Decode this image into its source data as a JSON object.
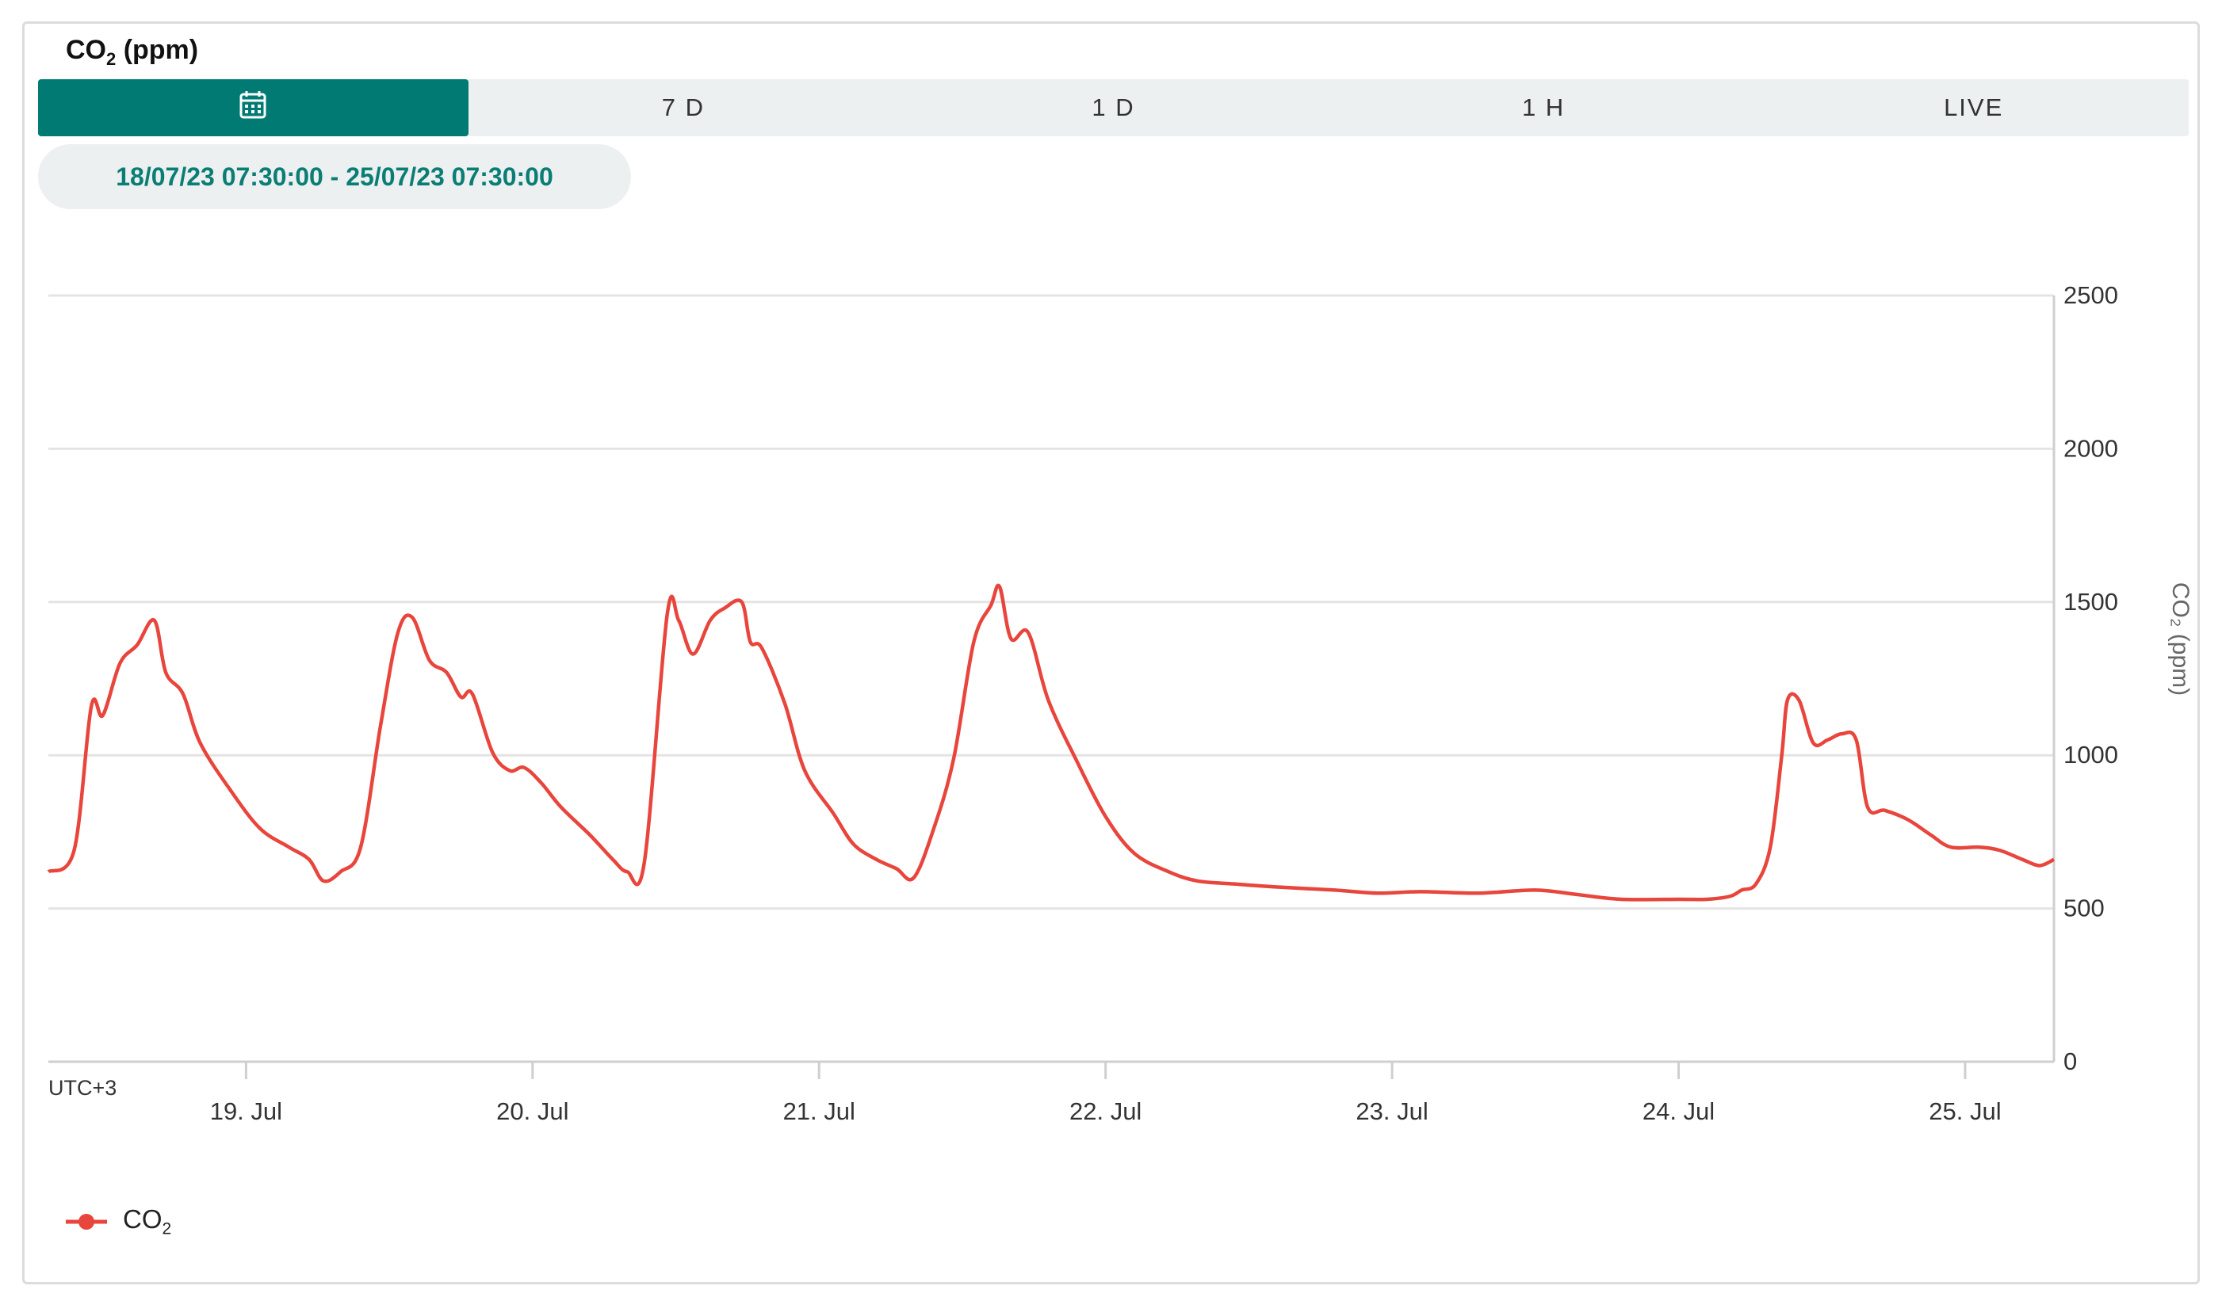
{
  "header": {
    "title_prefix": "CO",
    "title_sub": "2",
    "title_suffix": " (ppm)"
  },
  "tabs": [
    {
      "label": "",
      "icon": "calendar-icon",
      "active": true
    },
    {
      "label": "7 D",
      "active": false
    },
    {
      "label": "1 D",
      "active": false
    },
    {
      "label": "1 H",
      "active": false
    },
    {
      "label": "LIVE",
      "active": false
    }
  ],
  "range_label": "18/07/23 07:30:00 - 25/07/23 07:30:00",
  "timezone_label": "UTC+3",
  "legend": {
    "prefix": "CO",
    "sub": "2"
  },
  "colors": {
    "accent": "#007a72",
    "series": "#e8453c",
    "range_text": "#0a7d75"
  },
  "chart_data": {
    "type": "line",
    "ylabel": "CO₂ (ppm)",
    "ylim": [
      0,
      2500
    ],
    "yticks": [
      0,
      500,
      1000,
      1500,
      2000,
      2500
    ],
    "xticks": [
      {
        "label": "19. Jul",
        "day": 19
      },
      {
        "label": "20. Jul",
        "day": 20
      },
      {
        "label": "21. Jul",
        "day": 21
      },
      {
        "label": "22. Jul",
        "day": 22
      },
      {
        "label": "23. Jul",
        "day": 23
      },
      {
        "label": "24. Jul",
        "day": 24
      },
      {
        "label": "25. Jul",
        "day": 25
      }
    ],
    "xlim_days": [
      18.31,
      25.31
    ],
    "grid": true,
    "legend_position": "bottom-left",
    "series": [
      {
        "name": "CO₂",
        "points": [
          [
            18.31,
            620
          ],
          [
            18.4,
            690
          ],
          [
            18.46,
            1160
          ],
          [
            18.5,
            1130
          ],
          [
            18.56,
            1300
          ],
          [
            18.62,
            1360
          ],
          [
            18.68,
            1440
          ],
          [
            18.72,
            1270
          ],
          [
            18.78,
            1200
          ],
          [
            18.84,
            1040
          ],
          [
            18.95,
            880
          ],
          [
            19.05,
            760
          ],
          [
            19.15,
            700
          ],
          [
            19.22,
            660
          ],
          [
            19.27,
            590
          ],
          [
            19.33,
            620
          ],
          [
            19.4,
            700
          ],
          [
            19.47,
            1100
          ],
          [
            19.53,
            1400
          ],
          [
            19.58,
            1450
          ],
          [
            19.64,
            1310
          ],
          [
            19.7,
            1270
          ],
          [
            19.75,
            1190
          ],
          [
            19.79,
            1200
          ],
          [
            19.86,
            1010
          ],
          [
            19.92,
            950
          ],
          [
            19.97,
            960
          ],
          [
            20.03,
            910
          ],
          [
            20.1,
            830
          ],
          [
            20.2,
            740
          ],
          [
            20.28,
            660
          ],
          [
            20.33,
            620
          ],
          [
            20.39,
            650
          ],
          [
            20.47,
            1460
          ],
          [
            20.51,
            1440
          ],
          [
            20.56,
            1330
          ],
          [
            20.62,
            1440
          ],
          [
            20.67,
            1480
          ],
          [
            20.73,
            1500
          ],
          [
            20.76,
            1370
          ],
          [
            20.8,
            1350
          ],
          [
            20.88,
            1170
          ],
          [
            20.95,
            950
          ],
          [
            21.05,
            810
          ],
          [
            21.12,
            710
          ],
          [
            21.2,
            660
          ],
          [
            21.27,
            630
          ],
          [
            21.33,
            600
          ],
          [
            21.4,
            760
          ],
          [
            21.47,
            990
          ],
          [
            21.54,
            1370
          ],
          [
            21.6,
            1490
          ],
          [
            21.63,
            1550
          ],
          [
            21.67,
            1380
          ],
          [
            21.73,
            1400
          ],
          [
            21.8,
            1180
          ],
          [
            21.9,
            980
          ],
          [
            22.0,
            800
          ],
          [
            22.1,
            680
          ],
          [
            22.22,
            620
          ],
          [
            22.32,
            590
          ],
          [
            22.45,
            580
          ],
          [
            22.6,
            570
          ],
          [
            22.8,
            560
          ],
          [
            22.95,
            550
          ],
          [
            23.1,
            555
          ],
          [
            23.3,
            550
          ],
          [
            23.5,
            560
          ],
          [
            23.65,
            545
          ],
          [
            23.8,
            530
          ],
          [
            24.0,
            530
          ],
          [
            24.1,
            530
          ],
          [
            24.18,
            540
          ],
          [
            24.22,
            560
          ],
          [
            24.27,
            580
          ],
          [
            24.32,
            700
          ],
          [
            24.36,
            1000
          ],
          [
            24.38,
            1180
          ],
          [
            24.42,
            1180
          ],
          [
            24.47,
            1040
          ],
          [
            24.52,
            1050
          ],
          [
            24.57,
            1070
          ],
          [
            24.62,
            1050
          ],
          [
            24.66,
            830
          ],
          [
            24.72,
            820
          ],
          [
            24.8,
            790
          ],
          [
            24.88,
            740
          ],
          [
            24.95,
            700
          ],
          [
            25.05,
            700
          ],
          [
            25.12,
            690
          ],
          [
            25.2,
            660
          ],
          [
            25.26,
            640
          ],
          [
            25.31,
            660
          ]
        ]
      }
    ]
  }
}
